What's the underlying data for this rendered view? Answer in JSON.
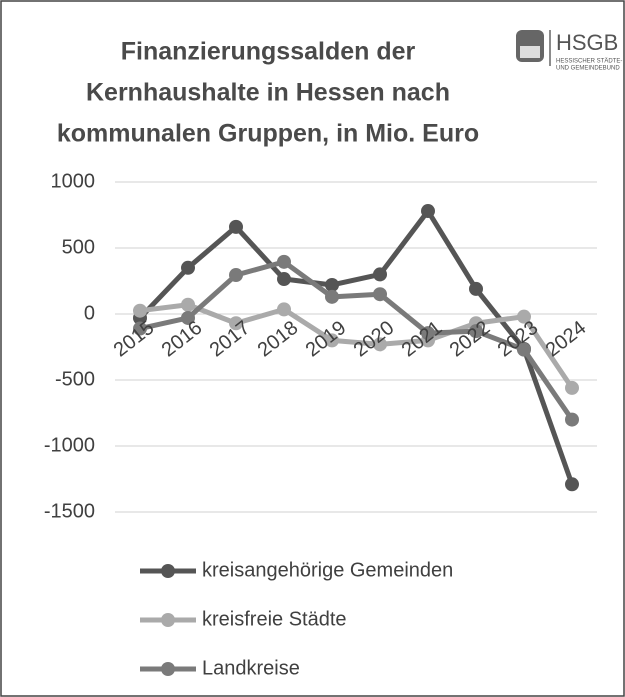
{
  "chart_data": {
    "type": "line",
    "title": [
      "Finanzierungssalden der",
      "Kernhaushalte in Hessen nach",
      "kommunalen Gruppen, in Mio. Euro"
    ],
    "logo": {
      "name": "HSGB",
      "lines": [
        "HESSISCHER STÄDTE-",
        "UND GEMEINDEBUND"
      ]
    },
    "categories": [
      "2015",
      "2016",
      "2017",
      "2018",
      "2019",
      "2020",
      "2021",
      "2022",
      "2023",
      "2024"
    ],
    "series": [
      {
        "name": "kreisangehörige Gemeinden",
        "color": "#555555",
        "values": [
          -30,
          350,
          660,
          265,
          220,
          300,
          780,
          190,
          -265,
          -1290
        ]
      },
      {
        "name": "kreisfreie Städte",
        "color": "#aaaaaa",
        "values": [
          25,
          70,
          -70,
          35,
          -200,
          -230,
          -200,
          -70,
          -20,
          -560
        ]
      },
      {
        "name": "Landkreise",
        "color": "#7a7a7a",
        "values": [
          -110,
          -30,
          295,
          395,
          130,
          150,
          -145,
          -130,
          -270,
          -800
        ]
      }
    ],
    "ylim": [
      -1500,
      1000
    ],
    "yticks": [
      -1500,
      -1000,
      -500,
      0,
      500,
      1000
    ],
    "grid": true,
    "legend": "bottom"
  }
}
